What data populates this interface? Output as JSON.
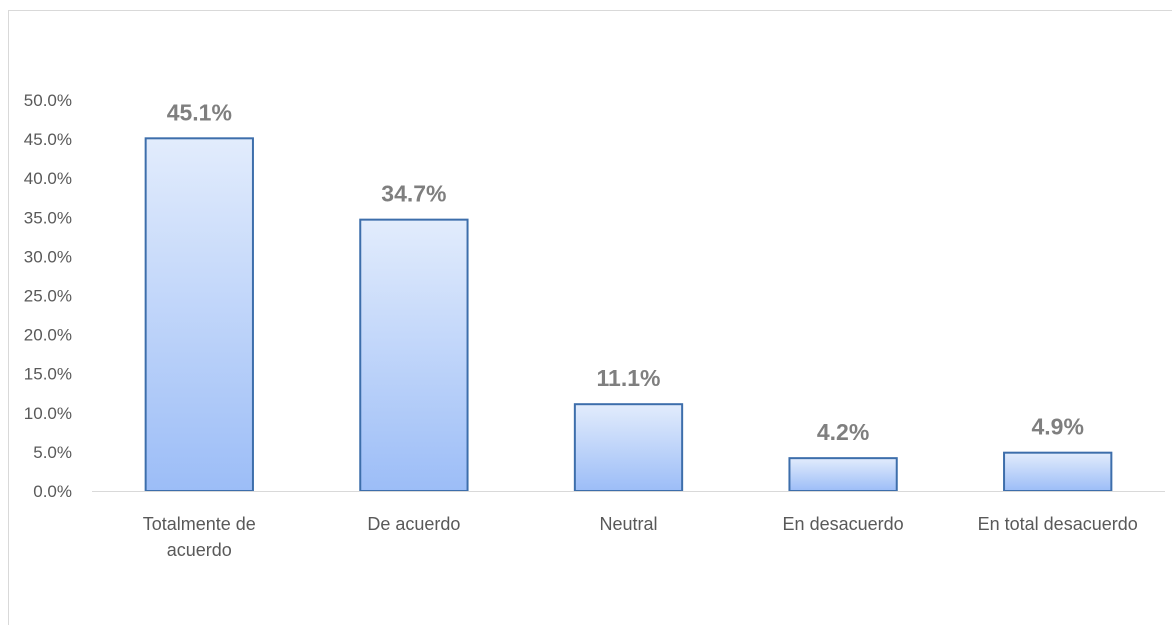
{
  "chart_data": {
    "type": "bar",
    "categories": [
      [
        "Totalmente de",
        "acuerdo"
      ],
      [
        "De acuerdo"
      ],
      [
        "Neutral"
      ],
      [
        "En desacuerdo"
      ],
      [
        "En total desacuerdo"
      ]
    ],
    "values": [
      45.1,
      34.7,
      11.1,
      4.2,
      4.9
    ],
    "data_labels": [
      "45.1%",
      "34.7%",
      "11.1%",
      "4.2%",
      "4.9%"
    ],
    "y_ticks": [
      "0.0%",
      "5.0%",
      "10.0%",
      "15.0%",
      "20.0%",
      "25.0%",
      "30.0%",
      "35.0%",
      "40.0%",
      "45.0%",
      "50.0%"
    ],
    "ylim": [
      0,
      50
    ],
    "title": "",
    "xlabel": "",
    "ylabel": "",
    "grid": false,
    "legend": "none",
    "colors": {
      "bar_fill_top": "#e2ecfc",
      "bar_fill_bottom": "#9cbdf7",
      "bar_stroke": "#3d6eab",
      "axis": "#d9d9d9",
      "text": "#595959",
      "data_label": "#7f7f7f"
    }
  }
}
